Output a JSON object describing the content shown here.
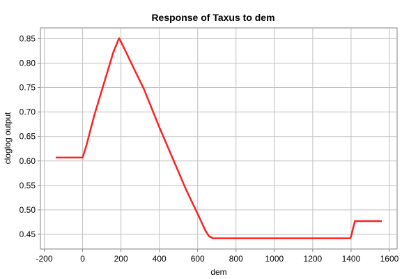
{
  "chart_data": {
    "type": "line",
    "title": "Response of Taxus to dem",
    "xlabel": "dem",
    "ylabel": "cloglog output",
    "xlim": [
      -220,
      1640
    ],
    "ylim": [
      0.42,
      0.872
    ],
    "xticks": [
      -200,
      0,
      200,
      400,
      600,
      800,
      1000,
      1200,
      1400,
      1600
    ],
    "yticks": [
      0.45,
      0.5,
      0.55,
      0.6,
      0.65,
      0.7,
      0.75,
      0.8,
      0.85
    ],
    "xtick_labels": [
      "-200",
      "0",
      "200",
      "400",
      "600",
      "800",
      "1000",
      "1200",
      "1400",
      "1600"
    ],
    "ytick_labels": [
      "0.45",
      "0.50",
      "0.55",
      "0.60",
      "0.65",
      "0.70",
      "0.75",
      "0.80",
      "0.85"
    ],
    "grid": true,
    "series": [
      {
        "color": "#ff2020",
        "x": [
          -140,
          0,
          20,
          60,
          120,
          160,
          190,
          220,
          260,
          320,
          400,
          480,
          540,
          600,
          640,
          660,
          680,
          800,
          1000,
          1200,
          1395,
          1400,
          1410,
          1420,
          1560
        ],
        "y": [
          0.607,
          0.607,
          0.632,
          0.692,
          0.77,
          0.822,
          0.851,
          0.828,
          0.795,
          0.747,
          0.669,
          0.596,
          0.541,
          0.492,
          0.458,
          0.446,
          0.442,
          0.442,
          0.442,
          0.442,
          0.442,
          0.445,
          0.462,
          0.477,
          0.477
        ]
      }
    ]
  }
}
